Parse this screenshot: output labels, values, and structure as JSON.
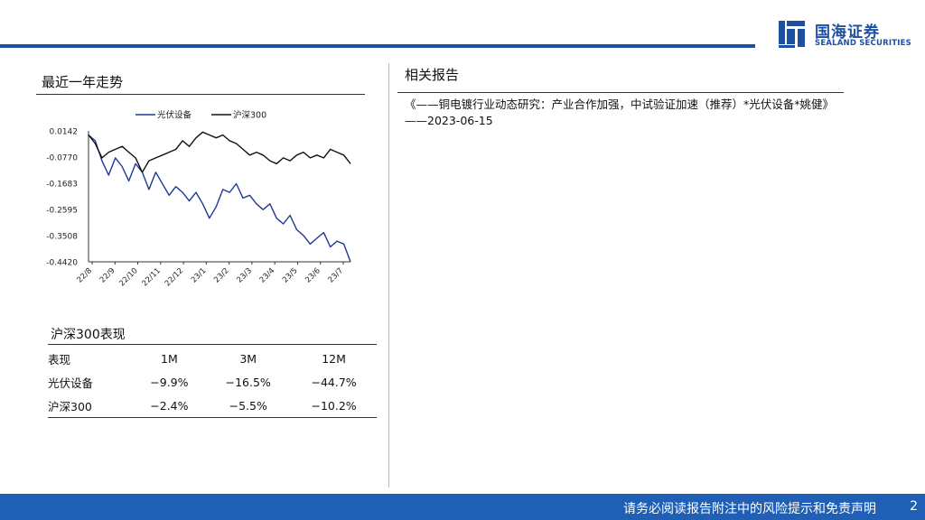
{
  "header": {
    "logo_cn": "国海证券",
    "logo_en": "SEALAND SECURITIES",
    "brand_color": "#1f4fa0"
  },
  "left_section": {
    "title": "最近一年走势"
  },
  "chart_data": {
    "type": "line",
    "title": "",
    "xlabel": "",
    "ylabel": "",
    "legend_position": "top",
    "ylim": [
      -0.442,
      0.0142
    ],
    "y_ticks": [
      "0.0142",
      "-0.0770",
      "-0.1683",
      "-0.2595",
      "-0.3508",
      "-0.4420"
    ],
    "x_ticks": [
      "22/8",
      "22/9",
      "22/10",
      "22/11",
      "22/12",
      "23/1",
      "23/2",
      "23/3",
      "23/4",
      "23/5",
      "23/6",
      "23/7"
    ],
    "series": [
      {
        "name": "光伏设备",
        "color": "#1f3a93",
        "values": [
          0.0,
          -0.02,
          -0.09,
          -0.14,
          -0.08,
          -0.11,
          -0.16,
          -0.1,
          -0.13,
          -0.19,
          -0.13,
          -0.17,
          -0.21,
          -0.18,
          -0.2,
          -0.23,
          -0.2,
          -0.24,
          -0.29,
          -0.25,
          -0.19,
          -0.2,
          -0.17,
          -0.22,
          -0.21,
          -0.24,
          -0.26,
          -0.24,
          -0.29,
          -0.31,
          -0.28,
          -0.33,
          -0.35,
          -0.38,
          -0.36,
          -0.34,
          -0.39,
          -0.37,
          -0.38,
          -0.442
        ]
      },
      {
        "name": "沪深300",
        "color": "#111111",
        "values": [
          0.0,
          -0.03,
          -0.08,
          -0.06,
          -0.05,
          -0.04,
          -0.06,
          -0.08,
          -0.13,
          -0.09,
          -0.08,
          -0.07,
          -0.06,
          -0.05,
          -0.02,
          -0.04,
          -0.01,
          0.01,
          0.0,
          -0.01,
          0.0,
          -0.02,
          -0.03,
          -0.05,
          -0.07,
          -0.06,
          -0.07,
          -0.09,
          -0.1,
          -0.08,
          -0.09,
          -0.07,
          -0.06,
          -0.08,
          -0.07,
          -0.08,
          -0.05,
          -0.06,
          -0.07,
          -0.1
        ]
      }
    ]
  },
  "right_section": {
    "title": "相关报告",
    "report": "《——铜电镀行业动态研究：产业合作加强，中试验证加速（推荐）*光伏设备*姚健》——2023-06-15"
  },
  "performance": {
    "title": "沪深300表现",
    "header": [
      "表现",
      "1M",
      "3M",
      "12M"
    ],
    "rows": [
      [
        "光伏设备",
        "−9.9%",
        "−16.5%",
        "−44.7%"
      ],
      [
        "沪深300",
        "−2.4%",
        "−5.5%",
        "−10.2%"
      ]
    ]
  },
  "footer": {
    "disclaimer": "请务必阅读报告附注中的风险提示和免责声明",
    "page": "2",
    "color": "#1f5fb5"
  }
}
